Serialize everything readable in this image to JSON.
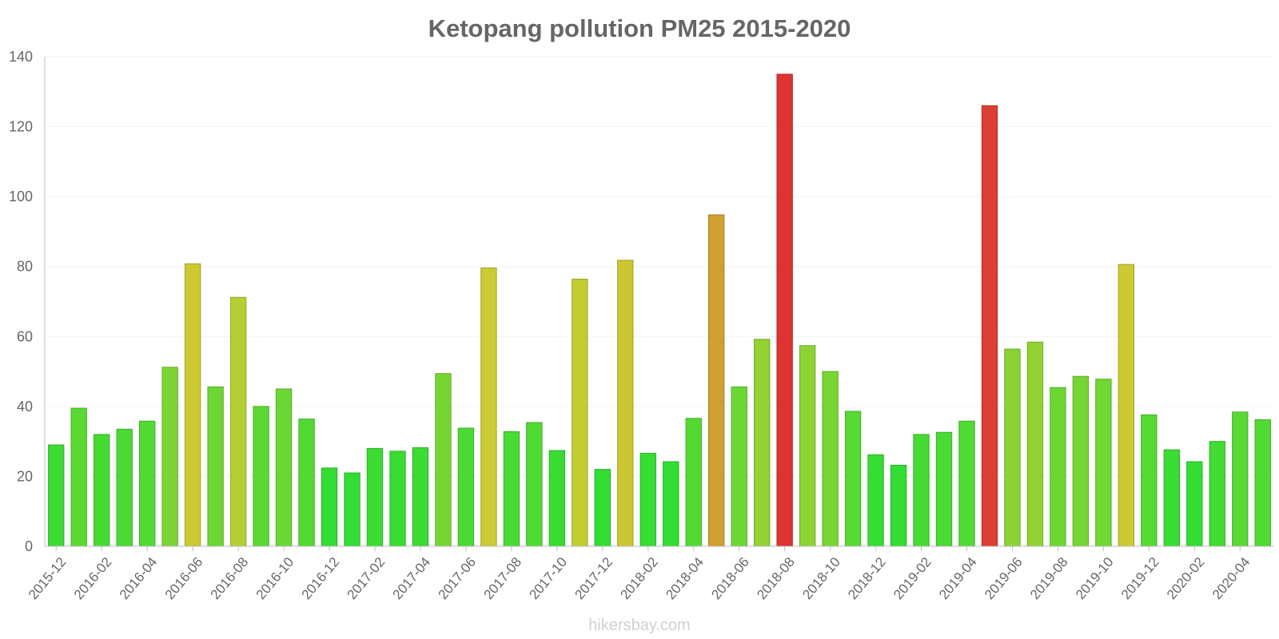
{
  "chart_data": {
    "type": "bar",
    "title": "Ketopang pollution PM25 2015-2020",
    "xlabel": "",
    "ylabel": "",
    "ylim": [
      0,
      140
    ],
    "yticks": [
      0,
      20,
      40,
      60,
      80,
      100,
      120,
      140
    ],
    "grid": true,
    "legend": "none",
    "categories": [
      "2015-12",
      "2016-01",
      "2016-02",
      "2016-03",
      "2016-04",
      "2016-05",
      "2016-06",
      "2016-07",
      "2016-08",
      "2016-09",
      "2016-10",
      "2016-11",
      "2016-12",
      "2017-01",
      "2017-02",
      "2017-03",
      "2017-04",
      "2017-05",
      "2017-06",
      "2017-07",
      "2017-08",
      "2017-09",
      "2017-10",
      "2017-11",
      "2017-12",
      "2018-01",
      "2018-02",
      "2018-03",
      "2018-04",
      "2018-05",
      "2018-06",
      "2018-07",
      "2018-08",
      "2018-09",
      "2018-10",
      "2018-11",
      "2018-12",
      "2019-01",
      "2019-02",
      "2019-03",
      "2019-04",
      "2019-05",
      "2019-06",
      "2019-07",
      "2019-08",
      "2019-09",
      "2019-10",
      "2019-11",
      "2019-12",
      "2020-01",
      "2020-02",
      "2020-03",
      "2020-04",
      "2020-05"
    ],
    "xtick_labels": [
      "2015-12",
      "2016-02",
      "2016-04",
      "2016-06",
      "2016-08",
      "2016-10",
      "2016-12",
      "2017-02",
      "2017-04",
      "2017-06",
      "2017-08",
      "2017-10",
      "2017-12",
      "2018-02",
      "2018-04",
      "2018-06",
      "2018-08",
      "2018-10",
      "2018-12",
      "2019-02",
      "2019-04",
      "2019-06",
      "2019-08",
      "2019-10",
      "2019-12",
      "2020-02",
      "2020-04"
    ],
    "values": [
      29,
      39.5,
      32,
      33.5,
      35.8,
      51.2,
      80.8,
      45.6,
      71.2,
      40,
      45,
      36.4,
      22.4,
      21,
      28,
      27.2,
      28.2,
      49.4,
      33.8,
      79.6,
      32.8,
      35.4,
      27.4,
      76.4,
      22,
      81.8,
      26.6,
      24.2,
      36.6,
      94.8,
      45.6,
      59.2,
      135,
      57.4,
      50,
      38.6,
      26.2,
      23.2,
      32,
      32.6,
      35.8,
      126,
      56.4,
      58.4,
      45.4,
      48.6,
      47.8,
      80.6,
      37.6,
      27.6,
      24.2,
      30,
      38.4,
      36.2
    ]
  },
  "colors": {
    "low": "#33dd33",
    "mid": "#cccc33",
    "high": "#dd3333",
    "grid": "#f2f2f2",
    "axis": "#bfbfbf",
    "text": "#666666"
  },
  "watermark": "hikersbay.com"
}
